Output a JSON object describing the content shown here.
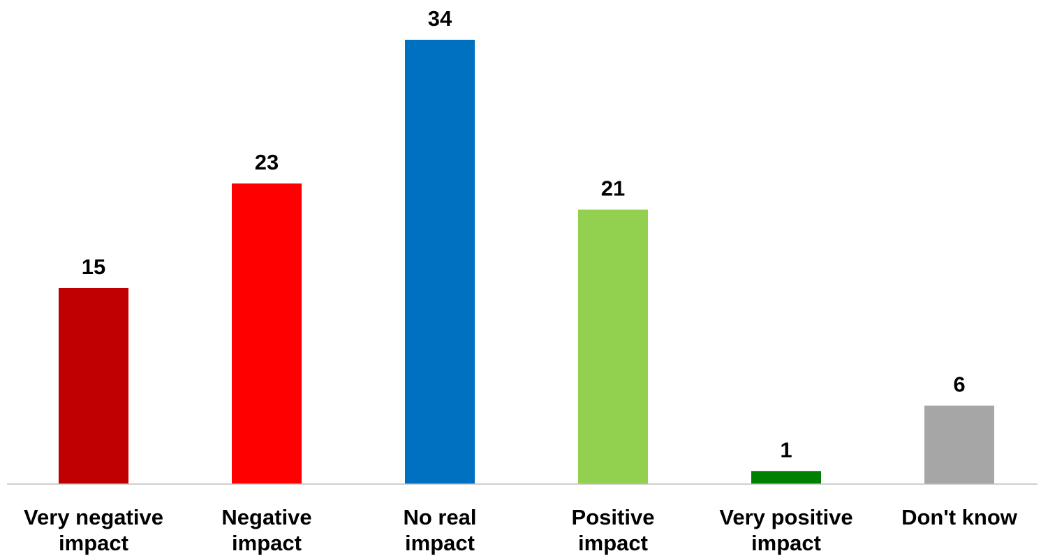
{
  "chart_data": {
    "type": "bar",
    "title": "",
    "xlabel": "",
    "ylabel": "",
    "ylim": [
      0,
      34
    ],
    "grid": false,
    "legend": "none",
    "categories": [
      [
        "Very negative",
        "impact"
      ],
      [
        "Negative",
        "impact"
      ],
      [
        "No real",
        "impact"
      ],
      [
        "Positive",
        "impact"
      ],
      [
        "Very positive",
        "impact"
      ],
      [
        "Don't know"
      ]
    ],
    "values": [
      15,
      23,
      34,
      21,
      1,
      6
    ],
    "colors": [
      "#C00000",
      "#FF0000",
      "#0070C0",
      "#92D050",
      "#008000",
      "#A6A6A6"
    ],
    "axis_color": "#BFBFBF"
  }
}
